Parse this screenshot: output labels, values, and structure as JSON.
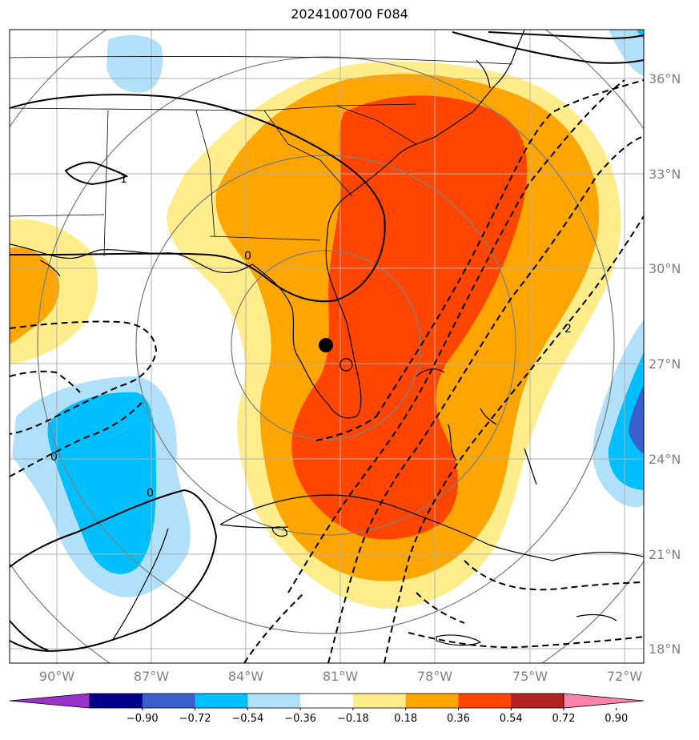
{
  "title": "2024100700 F084",
  "longitude_labels": [
    "90°W",
    "87°W",
    "84°W",
    "81°W",
    "78°W",
    "75°W",
    "72°W"
  ],
  "latitude_labels": [
    "36°N",
    "33°N",
    "30°N",
    "27°N",
    "24°N",
    "21°N",
    "18°N"
  ],
  "colorbar": {
    "ticks": [
      "−0.90",
      "−0.72",
      "−0.54",
      "−0.36",
      "−0.18",
      "0.18",
      "0.36",
      "0.54",
      "0.72",
      "0.90"
    ],
    "colors": [
      "#9a32cd",
      "#00008b",
      "#3a5fcd",
      "#00bfff",
      "#b0e0fa",
      "#ffffff",
      "#ffec8b",
      "#ffa500",
      "#ff4500",
      "#b22222",
      "#ff82ab"
    ]
  },
  "contour_labels": [
    "1",
    "0",
    "2",
    "0",
    "0"
  ],
  "colors": {
    "shade_light_yellow": "#ffec8b",
    "shade_orange": "#ffa500",
    "shade_red_orange": "#ff4500",
    "shade_light_blue": "#b0e0fa",
    "shade_blue": "#00bfff",
    "shade_royal_blue": "#3a5fcd",
    "gridline": "#b0b0b0",
    "range_ring": "#808080",
    "coast": "#000000"
  },
  "marker": "storm-center-dot"
}
